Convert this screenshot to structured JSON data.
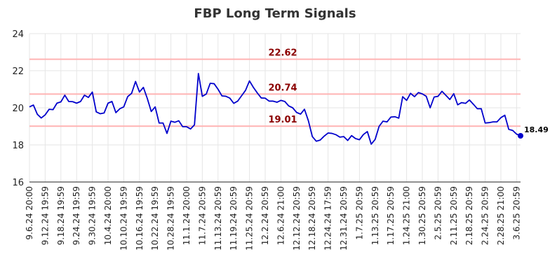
{
  "chart_data": {
    "type": "line",
    "title": "FBP Long Term Signals",
    "xlabel": "",
    "ylabel": "",
    "ylim": [
      16,
      24
    ],
    "yticks": [
      16,
      18,
      20,
      22,
      24
    ],
    "grid": true,
    "x_tick_labels": [
      "9.6.24 20:00",
      "9.12.24 19:59",
      "9.18.24 19:59",
      "9.24.24 19:59",
      "9.30.24 19:59",
      "10.4.24 20:00",
      "10.10.24 19:59",
      "10.16.24 19:59",
      "10.22.24 19:59",
      "10.28.24 19:59",
      "11.1.24 20:00",
      "11.7.24 20:59",
      "11.13.24 20:59",
      "11.19.24 20:59",
      "11.25.24 20:59",
      "12.2.24 20:59",
      "12.6.24 21:00",
      "12.12.24 20:59",
      "12.18.24 20:59",
      "12.24.24 17:59",
      "12.31.24 20:59",
      "1.7.25 20:59",
      "1.13.25 20:59",
      "1.17.25 20:59",
      "1.24.25 21:00",
      "1.30.25 20:59",
      "2.5.25 20:59",
      "2.11.25 20:59",
      "2.18.25 20:59",
      "2.24.25 20:59",
      "2.28.25 21:00",
      "3.6.25 20:59"
    ],
    "series": [
      {
        "color": "#0000cc",
        "values": [
          20.05,
          20.15,
          19.65,
          19.45,
          19.62,
          19.92,
          19.9,
          20.25,
          20.32,
          20.68,
          20.34,
          20.33,
          20.25,
          20.34,
          20.68,
          20.56,
          20.85,
          19.78,
          19.68,
          19.72,
          20.25,
          20.34,
          19.74,
          19.95,
          20.05,
          20.6,
          20.78,
          21.42,
          20.85,
          21.1,
          20.5,
          19.8,
          20.05,
          19.18,
          19.18,
          18.62,
          19.28,
          19.22,
          19.3,
          18.98,
          18.98,
          18.86,
          19.08,
          21.85,
          20.62,
          20.74,
          21.32,
          21.3,
          21.0,
          20.64,
          20.62,
          20.52,
          20.24,
          20.36,
          20.65,
          20.94,
          21.45,
          21.1,
          20.8,
          20.53,
          20.52,
          20.36,
          20.36,
          20.3,
          20.4,
          20.34,
          20.1,
          20.0,
          19.75,
          19.66,
          19.92,
          19.3,
          18.45,
          18.2,
          18.26,
          18.47,
          18.64,
          18.62,
          18.55,
          18.42,
          18.45,
          18.24,
          18.5,
          18.34,
          18.28,
          18.56,
          18.72,
          18.04,
          18.3,
          19.0,
          19.28,
          19.24,
          19.5,
          19.52,
          19.44,
          20.6,
          20.4,
          20.78,
          20.6,
          20.82,
          20.75,
          20.62,
          20.0,
          20.58,
          20.62,
          20.89,
          20.67,
          20.45,
          20.76,
          20.16,
          20.28,
          20.24,
          20.42,
          20.19,
          19.95,
          19.95,
          19.18,
          19.2,
          19.24,
          19.24,
          19.47,
          19.6,
          18.84,
          18.78,
          18.58,
          18.49
        ]
      }
    ],
    "levels": [
      {
        "value": 22.62,
        "label": "22.62"
      },
      {
        "value": 20.74,
        "label": "20.74"
      },
      {
        "value": 19.01,
        "label": "19.01"
      }
    ],
    "level_color": "#ffb3b3",
    "last_value_label": "18.49"
  }
}
